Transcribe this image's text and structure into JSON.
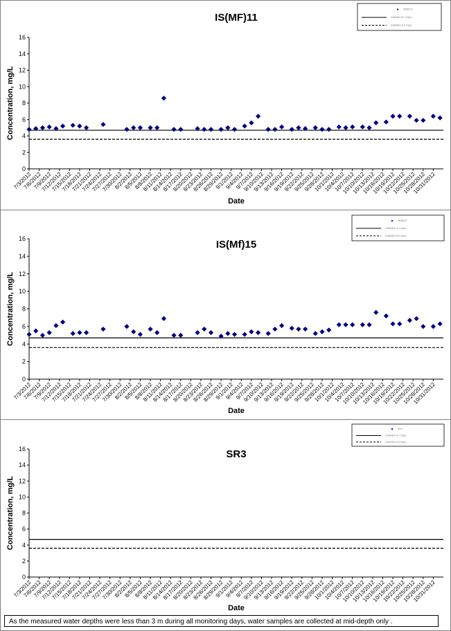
{
  "dates": [
    "7/3/2012",
    "7/6/2012",
    "7/9/2012",
    "7/12/2012",
    "7/15/2012",
    "7/18/2012",
    "7/21/2012",
    "7/24/2012",
    "7/27/2012",
    "7/30/2012",
    "8/2/2012",
    "8/5/2012",
    "8/8/2012",
    "8/11/2012",
    "8/14/2012",
    "8/17/2012",
    "8/20/2012",
    "8/23/2012",
    "8/26/2012",
    "8/29/2012",
    "9/1/2012",
    "9/4/2012",
    "9/7/2012",
    "9/10/2012",
    "9/13/2012",
    "9/16/2012",
    "9/19/2012",
    "9/22/2012",
    "9/25/2012",
    "9/28/2012",
    "10/1/2012",
    "10/4/2012",
    "10/7/2012",
    "10/10/2012",
    "10/13/2012",
    "10/16/2012",
    "10/19/2012",
    "10/22/2012",
    "10/25/2012",
    "10/28/2012",
    "10/31/2012"
  ],
  "chart_data": [
    {
      "type": "scatter",
      "title": "IS(MF)11",
      "xlabel": "Date",
      "ylabel": "Concentration, mg/L",
      "ylim": [
        0,
        16
      ],
      "yticks": [
        0,
        2,
        4,
        6,
        8,
        10,
        12,
        14,
        16
      ],
      "legend_position": "top-right",
      "legend": [
        "IS(MF)11",
        "Guideline (4.7 mg/L)",
        "Guideline (3.6 mg/L)"
      ],
      "reference_lines": [
        {
          "style": "solid",
          "value": 4.7
        },
        {
          "style": "dashed",
          "value": 3.6
        }
      ],
      "points": [
        {
          "x": "7/3/2012",
          "y": 4.8
        },
        {
          "x": "7/5/2012",
          "y": 4.9
        },
        {
          "x": "7/7/2012",
          "y": 5.0
        },
        {
          "x": "7/9/2012",
          "y": 5.1
        },
        {
          "x": "7/11/2012",
          "y": 4.9
        },
        {
          "x": "7/13/2012",
          "y": 5.2
        },
        {
          "x": "7/16/2012",
          "y": 5.3
        },
        {
          "x": "7/18/2012",
          "y": 5.2
        },
        {
          "x": "7/20/2012",
          "y": 5.0
        },
        {
          "x": "7/25/2012",
          "y": 5.4
        },
        {
          "x": "8/1/2012",
          "y": 4.8
        },
        {
          "x": "8/3/2012",
          "y": 5.0
        },
        {
          "x": "8/5/2012",
          "y": 5.0
        },
        {
          "x": "8/8/2012",
          "y": 5.0
        },
        {
          "x": "8/10/2012",
          "y": 5.0
        },
        {
          "x": "8/12/2012",
          "y": 8.6
        },
        {
          "x": "8/15/2012",
          "y": 4.8
        },
        {
          "x": "8/17/2012",
          "y": 4.8
        },
        {
          "x": "8/22/2012",
          "y": 4.9
        },
        {
          "x": "8/24/2012",
          "y": 4.8
        },
        {
          "x": "8/26/2012",
          "y": 4.8
        },
        {
          "x": "8/29/2012",
          "y": 4.8
        },
        {
          "x": "8/31/2012",
          "y": 5.0
        },
        {
          "x": "9/2/2012",
          "y": 4.8
        },
        {
          "x": "9/5/2012",
          "y": 5.2
        },
        {
          "x": "9/7/2012",
          "y": 5.6
        },
        {
          "x": "9/9/2012",
          "y": 6.4
        },
        {
          "x": "9/12/2012",
          "y": 4.8
        },
        {
          "x": "9/14/2012",
          "y": 4.8
        },
        {
          "x": "9/16/2012",
          "y": 5.1
        },
        {
          "x": "9/19/2012",
          "y": 4.8
        },
        {
          "x": "9/21/2012",
          "y": 5.0
        },
        {
          "x": "9/23/2012",
          "y": 4.9
        },
        {
          "x": "9/26/2012",
          "y": 5.0
        },
        {
          "x": "9/28/2012",
          "y": 4.8
        },
        {
          "x": "9/30/2012",
          "y": 4.8
        },
        {
          "x": "10/3/2012",
          "y": 5.1
        },
        {
          "x": "10/5/2012",
          "y": 5.0
        },
        {
          "x": "10/7/2012",
          "y": 5.1
        },
        {
          "x": "10/10/2012",
          "y": 5.1
        },
        {
          "x": "10/12/2012",
          "y": 5.0
        },
        {
          "x": "10/14/2012",
          "y": 5.6
        },
        {
          "x": "10/17/2012",
          "y": 5.7
        },
        {
          "x": "10/19/2012",
          "y": 6.4
        },
        {
          "x": "10/21/2012",
          "y": 6.4
        },
        {
          "x": "10/24/2012",
          "y": 6.4
        },
        {
          "x": "10/26/2012",
          "y": 5.9
        },
        {
          "x": "10/28/2012",
          "y": 5.9
        },
        {
          "x": "10/31/2012",
          "y": 6.4
        },
        {
          "x": "11/2/2012",
          "y": 6.2
        }
      ]
    },
    {
      "type": "scatter",
      "title": "IS(Mf)15",
      "xlabel": "Date",
      "ylabel": "Concentration, mg/L",
      "ylim": [
        0,
        16
      ],
      "yticks": [
        0,
        2,
        4,
        6,
        8,
        10,
        12,
        14,
        16
      ],
      "legend_position": "top-right",
      "legend": [
        "IS(Mf)15",
        "Guideline (4.7 mg/L)",
        "Guideline (3.6 mg/L)"
      ],
      "reference_lines": [
        {
          "style": "solid",
          "value": 4.7
        },
        {
          "style": "dashed",
          "value": 3.6
        }
      ],
      "points": [
        {
          "x": "7/3/2012",
          "y": 5.1
        },
        {
          "x": "7/5/2012",
          "y": 5.5
        },
        {
          "x": "7/7/2012",
          "y": 5.0
        },
        {
          "x": "7/9/2012",
          "y": 5.3
        },
        {
          "x": "7/11/2012",
          "y": 6.1
        },
        {
          "x": "7/13/2012",
          "y": 6.5
        },
        {
          "x": "7/16/2012",
          "y": 5.2
        },
        {
          "x": "7/18/2012",
          "y": 5.3
        },
        {
          "x": "7/20/2012",
          "y": 5.3
        },
        {
          "x": "7/25/2012",
          "y": 5.7
        },
        {
          "x": "8/1/2012",
          "y": 6.0
        },
        {
          "x": "8/3/2012",
          "y": 5.4
        },
        {
          "x": "8/5/2012",
          "y": 5.1
        },
        {
          "x": "8/8/2012",
          "y": 5.7
        },
        {
          "x": "8/10/2012",
          "y": 5.3
        },
        {
          "x": "8/12/2012",
          "y": 6.9
        },
        {
          "x": "8/15/2012",
          "y": 5.0
        },
        {
          "x": "8/17/2012",
          "y": 5.0
        },
        {
          "x": "8/22/2012",
          "y": 5.3
        },
        {
          "x": "8/24/2012",
          "y": 5.7
        },
        {
          "x": "8/26/2012",
          "y": 5.3
        },
        {
          "x": "8/29/2012",
          "y": 4.9
        },
        {
          "x": "8/31/2012",
          "y": 5.2
        },
        {
          "x": "9/2/2012",
          "y": 5.1
        },
        {
          "x": "9/5/2012",
          "y": 5.1
        },
        {
          "x": "9/7/2012",
          "y": 5.4
        },
        {
          "x": "9/9/2012",
          "y": 5.3
        },
        {
          "x": "9/12/2012",
          "y": 5.2
        },
        {
          "x": "9/14/2012",
          "y": 5.7
        },
        {
          "x": "9/16/2012",
          "y": 6.1
        },
        {
          "x": "9/19/2012",
          "y": 5.8
        },
        {
          "x": "9/21/2012",
          "y": 5.7
        },
        {
          "x": "9/23/2012",
          "y": 5.7
        },
        {
          "x": "9/26/2012",
          "y": 5.2
        },
        {
          "x": "9/28/2012",
          "y": 5.4
        },
        {
          "x": "9/30/2012",
          "y": 5.6
        },
        {
          "x": "10/3/2012",
          "y": 6.2
        },
        {
          "x": "10/5/2012",
          "y": 6.2
        },
        {
          "x": "10/7/2012",
          "y": 6.2
        },
        {
          "x": "10/10/2012",
          "y": 6.2
        },
        {
          "x": "10/12/2012",
          "y": 6.2
        },
        {
          "x": "10/14/2012",
          "y": 7.6
        },
        {
          "x": "10/17/2012",
          "y": 7.2
        },
        {
          "x": "10/19/2012",
          "y": 6.3
        },
        {
          "x": "10/21/2012",
          "y": 6.3
        },
        {
          "x": "10/24/2012",
          "y": 6.7
        },
        {
          "x": "10/26/2012",
          "y": 6.9
        },
        {
          "x": "10/28/2012",
          "y": 6.0
        },
        {
          "x": "10/31/2012",
          "y": 6.0
        },
        {
          "x": "11/2/2012",
          "y": 6.3
        }
      ]
    },
    {
      "type": "scatter",
      "title": "SR3",
      "xlabel": "Date",
      "ylabel": "Concentration, mg/L",
      "ylim": [
        0,
        16
      ],
      "yticks": [
        0,
        2,
        4,
        6,
        8,
        10,
        12,
        14,
        16
      ],
      "legend_position": "top-right",
      "legend": [
        "SR3",
        "Guideline (4.7 mg/L)",
        "Guideline (3.6 mg/L)"
      ],
      "reference_lines": [
        {
          "style": "solid",
          "value": 4.7
        },
        {
          "style": "dashed",
          "value": 3.6
        }
      ],
      "points": []
    }
  ],
  "footnote": "As the measured water depths were less than 3 m during all monitoring days, water samples are collected at mid-depth only ."
}
